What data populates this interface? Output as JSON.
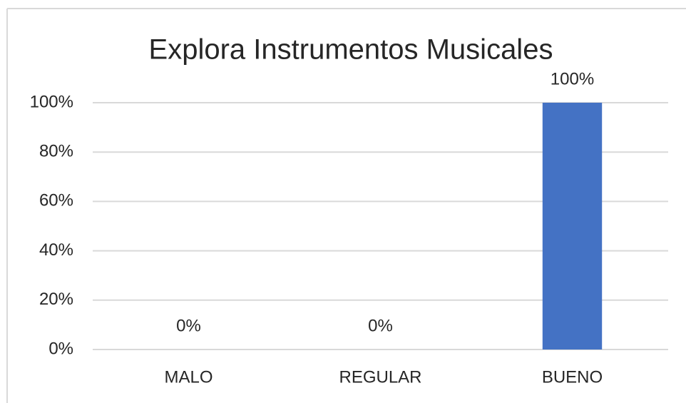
{
  "chart_data": {
    "type": "bar",
    "title": "Explora Instrumentos Musicales",
    "categories": [
      "MALO",
      "REGULAR",
      "BUENO"
    ],
    "values": [
      0,
      0,
      100
    ],
    "value_labels": [
      "0%",
      "0%",
      "100%"
    ],
    "color": "#4472c4",
    "ylim": [
      0,
      100
    ],
    "yticks": [
      {
        "value": 0,
        "label": "0%"
      },
      {
        "value": 20,
        "label": "20%"
      },
      {
        "value": 40,
        "label": "40%"
      },
      {
        "value": 60,
        "label": "60%"
      },
      {
        "value": 80,
        "label": "80%"
      },
      {
        "value": 100,
        "label": "100%"
      }
    ],
    "grid": true
  }
}
